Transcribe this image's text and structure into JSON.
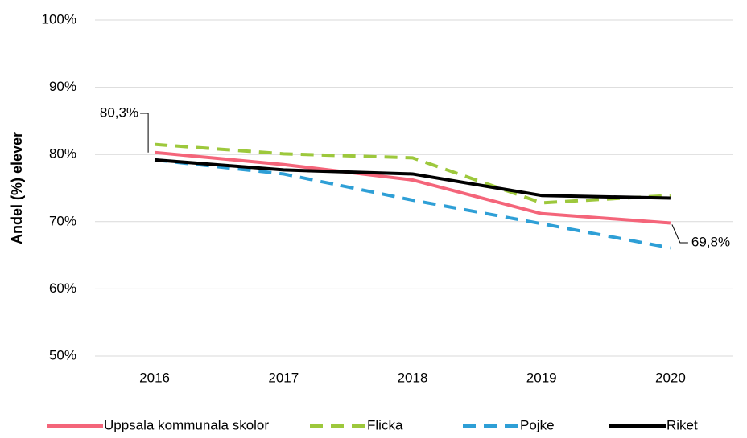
{
  "chart_data": {
    "type": "line",
    "y_label": "Andel (%) elever",
    "categories": [
      "2016",
      "2017",
      "2018",
      "2019",
      "2020"
    ],
    "series": [
      {
        "name": "Uppsala kommunala skolor",
        "color": "#f4657a",
        "line_style": "solid",
        "values": [
          80.3,
          78.5,
          76.2,
          71.2,
          69.8
        ],
        "value_labels": [
          "80,3%",
          null,
          null,
          null,
          "69,8%"
        ]
      },
      {
        "name": "Flicka",
        "color": "#9dc83c",
        "line_style": "dashed",
        "values": [
          81.5,
          80.1,
          79.5,
          72.8,
          73.9
        ]
      },
      {
        "name": "Pojke",
        "color": "#2e9fd6",
        "line_style": "dashed",
        "values": [
          79.2,
          77.1,
          73.2,
          69.7,
          66.1
        ]
      },
      {
        "name": "Riket",
        "color": "#000000",
        "line_style": "solid",
        "values": [
          79.2,
          77.7,
          77.1,
          73.9,
          73.5
        ]
      }
    ],
    "ylim": [
      50,
      100
    ],
    "yticks": [
      {
        "value": 50,
        "label": "50%"
      },
      {
        "value": 60,
        "label": "60%"
      },
      {
        "value": 70,
        "label": "70%"
      },
      {
        "value": 80,
        "label": "80%"
      },
      {
        "value": 90,
        "label": "90%"
      },
      {
        "value": 100,
        "label": "100%"
      }
    ],
    "grid": true
  }
}
